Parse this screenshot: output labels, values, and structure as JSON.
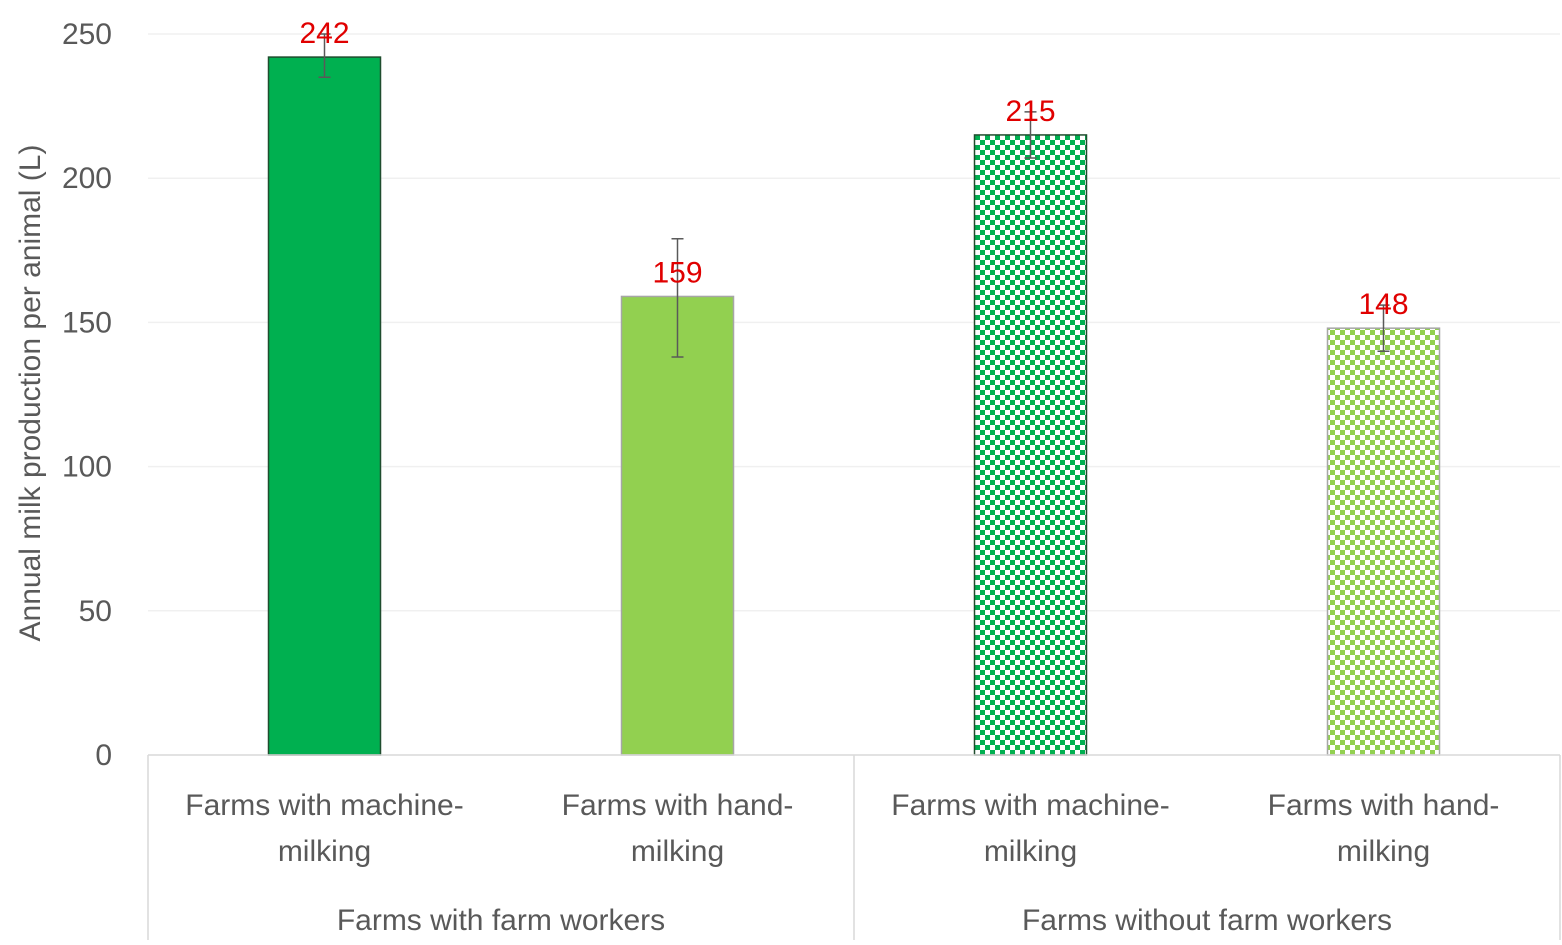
{
  "chart_data": {
    "type": "bar",
    "ylabel": "Annual milk production per animal (L)",
    "ylim": [
      0,
      250
    ],
    "yticks": [
      0,
      50,
      100,
      150,
      200,
      250
    ],
    "grid": true,
    "groups": [
      {
        "label": "Farms with farm workers",
        "categories": [
          "Farms with machine-milking",
          "Farms with hand-milking"
        ]
      },
      {
        "label": "Farms without farm workers",
        "categories": [
          "Farms with machine-milking",
          "Farms with hand-milking"
        ]
      }
    ],
    "bars": [
      {
        "group": "Farms with farm workers",
        "category": "Farms with machine-milking",
        "value": 242,
        "label": "242",
        "error": [
          235,
          250
        ],
        "color": "#00b050",
        "pattern": "solid"
      },
      {
        "group": "Farms with farm workers",
        "category": "Farms with hand-milking",
        "value": 159,
        "label": "159",
        "error": [
          138,
          179
        ],
        "color": "#92d050",
        "pattern": "solid"
      },
      {
        "group": "Farms without farm workers",
        "category": "Farms with machine-milking",
        "value": 215,
        "label": "215",
        "error": [
          207,
          223
        ],
        "color": "#00b050",
        "pattern": "checker"
      },
      {
        "group": "Farms without farm workers",
        "category": "Farms with hand-milking",
        "value": 148,
        "label": "148",
        "error": [
          140,
          156
        ],
        "color": "#92d050",
        "pattern": "checker"
      }
    ],
    "category_label_lines": [
      [
        "Farms with machine-",
        "milking"
      ],
      [
        "Farms with hand-",
        "milking"
      ],
      [
        "Farms with machine-",
        "milking"
      ],
      [
        "Farms with hand-",
        "milking"
      ]
    ],
    "colors": {
      "data_label": "#e00000",
      "axis_text": "#595959"
    }
  }
}
